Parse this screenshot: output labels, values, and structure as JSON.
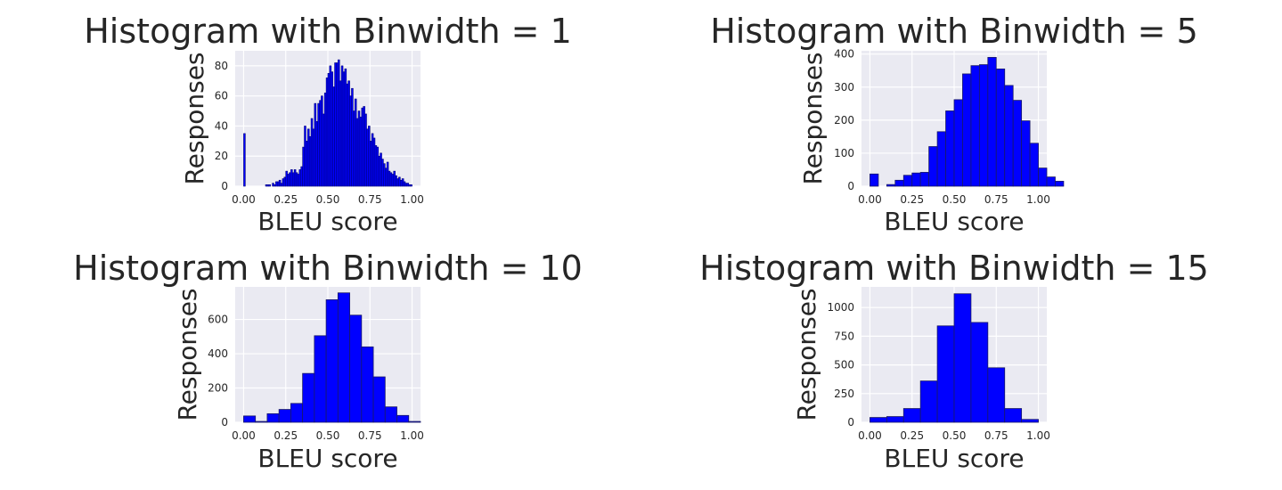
{
  "chart_data": [
    {
      "type": "bar",
      "title": "Histogram with Binwidth = 1",
      "xlabel": "BLEU score",
      "ylabel": "Responses",
      "xlim": [
        -0.05,
        1.05
      ],
      "ylim": [
        0,
        90
      ],
      "xticks": [
        "0.00",
        "0.25",
        "0.50",
        "0.75",
        "1.00"
      ],
      "yticks": [
        0,
        20,
        40,
        60,
        80
      ],
      "bin_width": 0.01,
      "bin_start": 0.0,
      "values": [
        35,
        0,
        0,
        0,
        0,
        0,
        0,
        0,
        0,
        0,
        0,
        0,
        0,
        1,
        1,
        1,
        0,
        2,
        1,
        3,
        3,
        4,
        2,
        5,
        6,
        10,
        8,
        9,
        11,
        9,
        11,
        9,
        8,
        11,
        13,
        26,
        40,
        30,
        38,
        33,
        45,
        38,
        55,
        43,
        55,
        57,
        60,
        48,
        62,
        72,
        75,
        80,
        76,
        66,
        82,
        82,
        84,
        70,
        80,
        76,
        78,
        68,
        70,
        60,
        65,
        50,
        58,
        45,
        50,
        46,
        52,
        53,
        48,
        38,
        40,
        30,
        35,
        32,
        27,
        26,
        20,
        22,
        18,
        15,
        12,
        16,
        10,
        9,
        8,
        10,
        7,
        5,
        6,
        4,
        5,
        3,
        2,
        2,
        1,
        1
      ]
    },
    {
      "type": "bar",
      "title": "Histogram with Binwidth = 5",
      "xlabel": "BLEU score",
      "ylabel": "Responses",
      "xlim": [
        -0.05,
        1.05
      ],
      "ylim": [
        0,
        410
      ],
      "xticks": [
        "0.00",
        "0.25",
        "0.50",
        "0.75",
        "1.00"
      ],
      "yticks": [
        0,
        100,
        200,
        300,
        400
      ],
      "bin_width": 0.05,
      "bin_start": 0.0,
      "values": [
        37,
        0,
        5,
        18,
        33,
        40,
        42,
        120,
        165,
        228,
        262,
        340,
        365,
        368,
        390,
        355,
        305,
        260,
        198,
        130,
        55,
        28,
        15,
        0
      ]
    },
    {
      "type": "bar",
      "title": "Histogram with Binwidth = 10",
      "xlabel": "BLEU score",
      "ylabel": "Responses",
      "xlim": [
        -0.05,
        1.05
      ],
      "ylim": [
        0,
        790
      ],
      "xticks": [
        "0.00",
        "0.25",
        "0.50",
        "0.75",
        "1.00"
      ],
      "yticks": [
        0,
        200,
        400,
        600
      ],
      "bin_width": 0.07,
      "bin_start": 0.0,
      "values": [
        37,
        5,
        50,
        75,
        110,
        285,
        505,
        715,
        755,
        625,
        440,
        265,
        90,
        40,
        5
      ]
    },
    {
      "type": "bar",
      "title": "Histogram with Binwidth = 15",
      "xlabel": "BLEU score",
      "ylabel": "Responses",
      "xlim": [
        -0.05,
        1.05
      ],
      "ylim": [
        0,
        1180
      ],
      "xticks": [
        "0.00",
        "0.25",
        "0.50",
        "0.75",
        "1.00"
      ],
      "yticks": [
        0,
        250,
        500,
        750,
        1000
      ],
      "bin_width": 0.1,
      "bin_start": 0.0,
      "values": [
        42,
        50,
        120,
        360,
        840,
        1120,
        870,
        475,
        120,
        25
      ]
    }
  ]
}
